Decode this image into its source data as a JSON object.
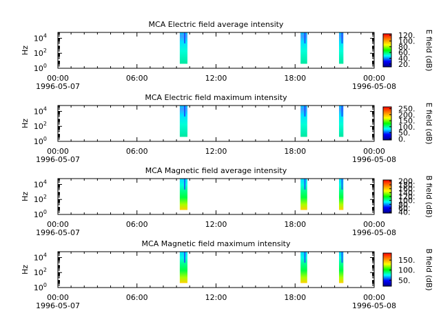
{
  "colors": {
    "colormap": [
      "#00008b",
      "#0000ff",
      "#00ffff",
      "#00ff00",
      "#ffff00",
      "#ff8000",
      "#ff0000"
    ],
    "axis": "#000000"
  },
  "chart_data": [
    {
      "type": "heatmap",
      "title": "MCA  Electric field average intensity",
      "ylabel": "Hz",
      "colorbar_label": "E field (dB)",
      "colorbar_ticks": [
        "20.",
        "40.",
        "60.",
        "80.",
        "100.",
        "120."
      ],
      "colorbar_range": [
        10,
        125
      ],
      "xlim": [
        "1996-05-07 00:00",
        "1996-05-08 00:00"
      ],
      "ylim": [
        1,
        60000
      ],
      "yscale": "log",
      "x_tick_labels": [
        "00:00",
        "06:00",
        "12:00",
        "18:00",
        "00:00"
      ],
      "x_date_labels": [
        "1996-05-07",
        "1996-05-08"
      ],
      "y_tick_labels": [
        "10^0",
        "10^2",
        "10^4"
      ],
      "segments": [
        {
          "start": "09:15",
          "end": "09:50",
          "level": "low"
        },
        {
          "start": "18:25",
          "end": "18:55",
          "level": "low"
        },
        {
          "start": "21:20",
          "end": "21:40",
          "level": "low"
        }
      ]
    },
    {
      "type": "heatmap",
      "title": "MCA  Electric field maximum intensity",
      "ylabel": "Hz",
      "colorbar_label": "E field (dB)",
      "colorbar_ticks": [
        "0.",
        "50.",
        "100.",
        "150.",
        "200.",
        "250."
      ],
      "colorbar_range": [
        -10,
        265
      ],
      "xlim": [
        "1996-05-07 00:00",
        "1996-05-08 00:00"
      ],
      "ylim": [
        1,
        60000
      ],
      "yscale": "log",
      "x_tick_labels": [
        "00:00",
        "06:00",
        "12:00",
        "18:00",
        "00:00"
      ],
      "x_date_labels": [
        "1996-05-07",
        "1996-05-08"
      ],
      "y_tick_labels": [
        "10^0",
        "10^2",
        "10^4"
      ],
      "segments": [
        {
          "start": "09:15",
          "end": "09:50",
          "level": "low"
        },
        {
          "start": "18:25",
          "end": "18:55",
          "level": "low"
        },
        {
          "start": "21:20",
          "end": "21:40",
          "level": "low"
        }
      ]
    },
    {
      "type": "heatmap",
      "title": "MCA  Magnetic field average intensity",
      "ylabel": "Hz",
      "colorbar_label": "B field (dB)",
      "colorbar_ticks": [
        "40.",
        "60.",
        "80.",
        "100.",
        "120.",
        "140.",
        "160.",
        "180.",
        "200."
      ],
      "colorbar_range": [
        35,
        205
      ],
      "xlim": [
        "1996-05-07 00:00",
        "1996-05-08 00:00"
      ],
      "ylim": [
        1,
        60000
      ],
      "yscale": "log",
      "x_tick_labels": [
        "00:00",
        "06:00",
        "12:00",
        "18:00",
        "00:00"
      ],
      "x_date_labels": [
        "1996-05-07",
        "1996-05-08"
      ],
      "y_tick_labels": [
        "10^0",
        "10^2",
        "10^4"
      ],
      "segments": [
        {
          "start": "09:15",
          "end": "09:50",
          "level": "high"
        },
        {
          "start": "18:25",
          "end": "18:55",
          "level": "high"
        },
        {
          "start": "21:20",
          "end": "21:40",
          "level": "high"
        }
      ]
    },
    {
      "type": "heatmap",
      "title": "MCA  Magnetic field maximum intensity",
      "ylabel": "Hz",
      "colorbar_label": "B field (dB)",
      "colorbar_ticks": [
        "50.",
        "100.",
        "150."
      ],
      "colorbar_range": [
        20,
        185
      ],
      "xlim": [
        "1996-05-07 00:00",
        "1996-05-08 00:00"
      ],
      "ylim": [
        1,
        60000
      ],
      "yscale": "log",
      "x_tick_labels": [
        "00:00",
        "06:00",
        "12:00",
        "18:00",
        "00:00"
      ],
      "x_date_labels": [
        "1996-05-07",
        "1996-05-08"
      ],
      "y_tick_labels": [
        "10^0",
        "10^2",
        "10^4"
      ],
      "segments": [
        {
          "start": "09:15",
          "end": "09:50",
          "level": "high"
        },
        {
          "start": "18:25",
          "end": "18:55",
          "level": "high"
        },
        {
          "start": "21:20",
          "end": "21:40",
          "level": "high"
        }
      ]
    }
  ]
}
